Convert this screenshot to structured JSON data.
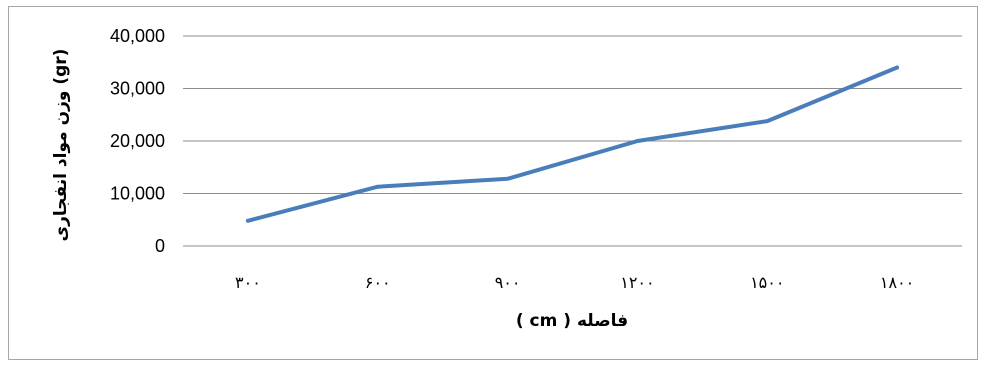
{
  "chart_data": {
    "type": "line",
    "title": "",
    "xlabel": "فاصله   ( cm )",
    "ylabel": "وزن مواد انفجاری (gr)",
    "categories": [
      "۳۰۰",
      "۶۰۰",
      "۹۰۰",
      "۱۲۰۰",
      "۱۵۰۰",
      "۱۸۰۰"
    ],
    "x_values": [
      300,
      600,
      900,
      1200,
      1500,
      1800
    ],
    "series": [
      {
        "values": [
          4800,
          11300,
          12800,
          20000,
          23800,
          34000
        ],
        "color": "#4a7ebb"
      }
    ],
    "ylim": [
      0,
      40000
    ],
    "yticks": [
      0,
      10000,
      20000,
      30000,
      40000
    ],
    "ytick_labels": [
      "0",
      "10,000",
      "20,000",
      "30,000",
      "40,000"
    ],
    "grid": true,
    "gridline_color": "#8c8c8c",
    "legend": "none"
  }
}
